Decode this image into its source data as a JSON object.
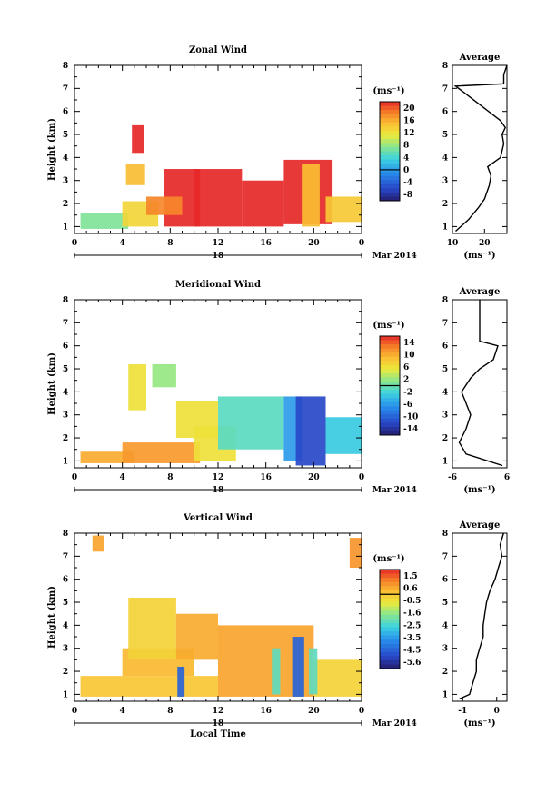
{
  "chart_data": [
    {
      "type": "heatmap",
      "title": "Zonal Wind",
      "ylabel": "Height (km)",
      "xlim": [
        0,
        24
      ],
      "ylim": [
        0.7,
        8
      ],
      "x_ticks": [
        "0",
        "4",
        "8",
        "12",
        "16",
        "20",
        "0"
      ],
      "y_ticks": [
        "1",
        "2",
        "3",
        "4",
        "5",
        "6",
        "7",
        "8"
      ],
      "date_day": "18",
      "date_label": "Mar 2014",
      "colorbar": {
        "unit": "(ms⁻¹)",
        "ticks": [
          "20",
          "16",
          "12",
          "8",
          "4",
          "0",
          "-4",
          "-8"
        ],
        "min": -10,
        "max": 22
      },
      "blobs": [
        {
          "x0": 0.5,
          "x1": 4.5,
          "y0": 0.9,
          "y1": 1.6,
          "v": 7
        },
        {
          "x0": 4.0,
          "x1": 7.0,
          "y0": 1.0,
          "y1": 2.1,
          "v": 13
        },
        {
          "x0": 4.3,
          "x1": 5.9,
          "y0": 2.8,
          "y1": 3.7,
          "v": 15
        },
        {
          "x0": 4.8,
          "x1": 5.8,
          "y0": 4.2,
          "y1": 5.4,
          "v": 22
        },
        {
          "x0": 7.5,
          "x1": 10.5,
          "y0": 1.0,
          "y1": 3.5,
          "v": 22
        },
        {
          "x0": 6.0,
          "x1": 9.0,
          "y0": 1.5,
          "y1": 2.3,
          "v": 18
        },
        {
          "x0": 10.0,
          "x1": 14.0,
          "y0": 1.0,
          "y1": 3.5,
          "v": 22
        },
        {
          "x0": 14.0,
          "x1": 17.5,
          "y0": 1.0,
          "y1": 3.0,
          "v": 22
        },
        {
          "x0": 17.5,
          "x1": 21.5,
          "y0": 1.1,
          "y1": 3.9,
          "v": 22
        },
        {
          "x0": 19.0,
          "x1": 20.5,
          "y0": 1.0,
          "y1": 3.7,
          "v": 15
        },
        {
          "x0": 21.0,
          "x1": 24.0,
          "y0": 1.2,
          "y1": 2.3,
          "v": 14
        }
      ],
      "avg_profile": {
        "xlim": [
          10,
          27
        ],
        "x_ticks": [
          "10",
          "20"
        ],
        "xlabel": "(ms⁻¹)",
        "title": "Average",
        "points": [
          [
            11,
            0.8
          ],
          [
            15,
            1.3
          ],
          [
            18,
            1.8
          ],
          [
            20,
            2.2
          ],
          [
            21.5,
            2.8
          ],
          [
            22,
            3.2
          ],
          [
            21,
            3.6
          ],
          [
            23,
            3.8
          ],
          [
            25,
            4.0
          ],
          [
            26,
            4.6
          ],
          [
            25.5,
            5.0
          ],
          [
            26.5,
            5.3
          ],
          [
            25,
            5.6
          ],
          [
            11,
            7.1
          ],
          [
            26,
            7.2
          ],
          [
            26,
            7.6
          ],
          [
            27,
            8.0
          ]
        ]
      }
    },
    {
      "type": "heatmap",
      "title": "Meridional Wind",
      "ylabel": "Height (km)",
      "xlim": [
        0,
        24
      ],
      "ylim": [
        0.7,
        8
      ],
      "x_ticks": [
        "0",
        "4",
        "8",
        "12",
        "16",
        "20",
        "0"
      ],
      "y_ticks": [
        "1",
        "2",
        "3",
        "4",
        "5",
        "6",
        "7",
        "8"
      ],
      "date_day": "18",
      "date_label": "Mar 2014",
      "colorbar": {
        "unit": "(ms⁻¹)",
        "ticks": [
          "14",
          "10",
          "6",
          "2",
          "-2",
          "-6",
          "-10",
          "-14"
        ],
        "min": -16,
        "max": 16
      },
      "blobs": [
        {
          "x0": 0.5,
          "x1": 5.0,
          "y0": 0.9,
          "y1": 1.4,
          "v": 10
        },
        {
          "x0": 4.0,
          "x1": 10.5,
          "y0": 0.9,
          "y1": 1.8,
          "v": 11
        },
        {
          "x0": 10.0,
          "x1": 13.5,
          "y0": 1.0,
          "y1": 2.5,
          "v": 6
        },
        {
          "x0": 4.5,
          "x1": 6.0,
          "y0": 3.2,
          "y1": 5.2,
          "v": 6
        },
        {
          "x0": 6.5,
          "x1": 8.5,
          "y0": 4.2,
          "y1": 5.2,
          "v": 2
        },
        {
          "x0": 8.5,
          "x1": 12.0,
          "y0": 2.0,
          "y1": 3.6,
          "v": 6
        },
        {
          "x0": 12.0,
          "x1": 17.5,
          "y0": 1.5,
          "y1": 3.8,
          "v": -1
        },
        {
          "x0": 17.5,
          "x1": 19.0,
          "y0": 1.0,
          "y1": 3.8,
          "v": -6
        },
        {
          "x0": 18.5,
          "x1": 21.0,
          "y0": 0.8,
          "y1": 3.8,
          "v": -12
        },
        {
          "x0": 21.0,
          "x1": 24.0,
          "y0": 1.3,
          "y1": 2.9,
          "v": -3
        }
      ],
      "avg_profile": {
        "xlim": [
          -6,
          6
        ],
        "x_ticks": [
          "-6",
          "6"
        ],
        "xlabel": "(ms⁻¹)",
        "title": "Average",
        "points": [
          [
            5,
            0.8
          ],
          [
            -3,
            1.3
          ],
          [
            -4.5,
            1.8
          ],
          [
            -3,
            2.4
          ],
          [
            -2,
            3.0
          ],
          [
            -3,
            3.5
          ],
          [
            -4,
            4.0
          ],
          [
            -2,
            4.6
          ],
          [
            0,
            5.0
          ],
          [
            3,
            5.4
          ],
          [
            4,
            6.0
          ],
          [
            0,
            6.2
          ],
          [
            0,
            8.0
          ]
        ]
      }
    },
    {
      "type": "heatmap",
      "title": "Vertical Wind",
      "xlabel": "Local Time",
      "ylabel": "Height (km)",
      "xlim": [
        0,
        24
      ],
      "ylim": [
        0.7,
        8
      ],
      "x_ticks": [
        "0",
        "4",
        "8",
        "12",
        "16",
        "20",
        "0"
      ],
      "y_ticks": [
        "1",
        "2",
        "3",
        "4",
        "5",
        "6",
        "7",
        "8"
      ],
      "date_day": "18",
      "date_label": "Mar 2014",
      "colorbar": {
        "unit": "(ms⁻¹)",
        "ticks": [
          "1.5",
          "0.6",
          "-0.5",
          "-1.6",
          "-2.5",
          "-3.5",
          "-4.5",
          "-5.6"
        ],
        "min": -6,
        "max": 2
      },
      "blobs": [
        {
          "x0": 0.5,
          "x1": 12.0,
          "y0": 0.9,
          "y1": 1.8,
          "v": 0.1
        },
        {
          "x0": 4.0,
          "x1": 10.0,
          "y0": 1.8,
          "y1": 3.0,
          "v": 0.3
        },
        {
          "x0": 4.5,
          "x1": 8.5,
          "y0": 2.5,
          "y1": 5.2,
          "v": -0.2
        },
        {
          "x0": 8.5,
          "x1": 12.0,
          "y0": 2.5,
          "y1": 4.5,
          "v": 0.5
        },
        {
          "x0": 12.0,
          "x1": 20.0,
          "y0": 0.9,
          "y1": 4.0,
          "v": 0.6
        },
        {
          "x0": 20.0,
          "x1": 24.0,
          "y0": 0.9,
          "y1": 2.5,
          "v": -0.2
        },
        {
          "x0": 8.6,
          "x1": 9.2,
          "y0": 0.9,
          "y1": 2.2,
          "v": -4.5
        },
        {
          "x0": 18.2,
          "x1": 19.2,
          "y0": 0.9,
          "y1": 3.5,
          "v": -4.5
        },
        {
          "x0": 16.5,
          "x1": 17.2,
          "y0": 1.0,
          "y1": 3.0,
          "v": -2.2
        },
        {
          "x0": 19.6,
          "x1": 20.3,
          "y0": 1.0,
          "y1": 3.0,
          "v": -2.2
        },
        {
          "x0": 23.0,
          "x1": 24.0,
          "y0": 6.5,
          "y1": 7.8,
          "v": 0.8
        },
        {
          "x0": 1.5,
          "x1": 2.5,
          "y0": 7.2,
          "y1": 7.9,
          "v": 0.6
        }
      ],
      "avg_profile": {
        "xlim": [
          -1.3,
          0.3
        ],
        "x_ticks": [
          "-1",
          "0"
        ],
        "xlabel": "(ms⁻¹)",
        "title": "Average",
        "points": [
          [
            -1.1,
            0.8
          ],
          [
            -0.8,
            1.0
          ],
          [
            -0.7,
            1.5
          ],
          [
            -0.6,
            2.0
          ],
          [
            -0.6,
            2.5
          ],
          [
            -0.5,
            3.0
          ],
          [
            -0.4,
            3.5
          ],
          [
            -0.4,
            4.0
          ],
          [
            -0.35,
            4.5
          ],
          [
            -0.3,
            5.0
          ],
          [
            -0.2,
            5.5
          ],
          [
            -0.05,
            6.0
          ],
          [
            0.05,
            6.5
          ],
          [
            0.15,
            7.0
          ],
          [
            0.1,
            7.5
          ],
          [
            0.2,
            8.0
          ]
        ]
      }
    }
  ]
}
